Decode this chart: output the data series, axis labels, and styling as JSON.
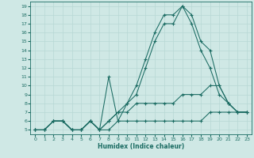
{
  "title": "",
  "xlabel": "Humidex (Indice chaleur)",
  "bg_color": "#cfe8e5",
  "line_color": "#1a6b62",
  "grid_color": "#b8d8d4",
  "xlim": [
    -0.5,
    23.5
  ],
  "ylim": [
    4.5,
    19.5
  ],
  "xticks": [
    0,
    1,
    2,
    3,
    4,
    5,
    6,
    7,
    8,
    9,
    10,
    11,
    12,
    13,
    14,
    15,
    16,
    17,
    18,
    19,
    20,
    21,
    22,
    23
  ],
  "yticks": [
    5,
    6,
    7,
    8,
    9,
    10,
    11,
    12,
    13,
    14,
    15,
    16,
    17,
    18,
    19
  ],
  "lines": [
    {
      "x": [
        0,
        1,
        2,
        3,
        4,
        5,
        6,
        7,
        8,
        9,
        10,
        11,
        12,
        13,
        14,
        15,
        16,
        17,
        18,
        19,
        20,
        21,
        22,
        23
      ],
      "y": [
        5,
        5,
        6,
        6,
        5,
        5,
        6,
        5,
        5,
        6,
        6,
        6,
        6,
        6,
        6,
        6,
        6,
        6,
        6,
        7,
        7,
        7,
        7,
        7
      ]
    },
    {
      "x": [
        0,
        1,
        2,
        3,
        4,
        5,
        6,
        7,
        8,
        9,
        10,
        11,
        12,
        13,
        14,
        15,
        16,
        17,
        18,
        19,
        20,
        21,
        22,
        23
      ],
      "y": [
        5,
        5,
        6,
        6,
        5,
        5,
        6,
        5,
        6,
        7,
        7,
        8,
        8,
        8,
        8,
        8,
        9,
        9,
        9,
        10,
        10,
        8,
        7,
        7
      ]
    },
    {
      "x": [
        0,
        1,
        2,
        3,
        4,
        5,
        6,
        7,
        8,
        9,
        10,
        11,
        12,
        13,
        14,
        15,
        16,
        17,
        18,
        19,
        20,
        21,
        22,
        23
      ],
      "y": [
        5,
        5,
        6,
        6,
        5,
        5,
        6,
        5,
        11,
        6,
        8,
        9,
        12,
        15,
        17,
        17,
        19,
        17,
        14,
        12,
        9,
        8,
        7,
        7
      ]
    },
    {
      "x": [
        0,
        1,
        2,
        3,
        4,
        5,
        6,
        7,
        8,
        9,
        10,
        11,
        12,
        13,
        14,
        15,
        16,
        17,
        18,
        19,
        20,
        21,
        22,
        23
      ],
      "y": [
        5,
        5,
        6,
        6,
        5,
        5,
        6,
        5,
        6,
        7,
        8,
        10,
        13,
        16,
        18,
        18,
        19,
        18,
        15,
        14,
        10,
        8,
        7,
        7
      ]
    }
  ]
}
